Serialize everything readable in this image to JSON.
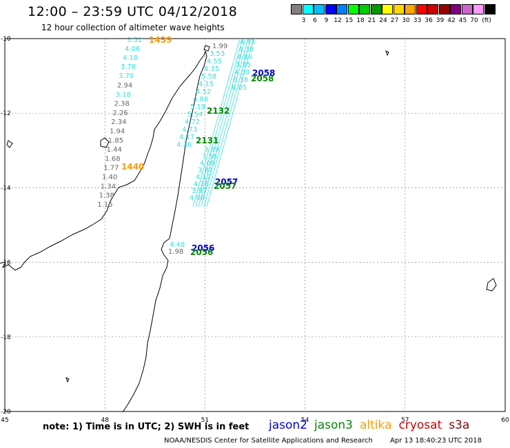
{
  "header": {
    "title": "12:00 – 23:59 UTC 04/12/2018",
    "subtitle": "12 hour collection of altimeter wave heights"
  },
  "colorbar": {
    "unit": "(ft)",
    "colors": [
      "#808080",
      "#00ffff",
      "#00bfff",
      "#0000ff",
      "#007fff",
      "#00ff00",
      "#00cc00",
      "#009900",
      "#ffff00",
      "#ffd700",
      "#ffa500",
      "#ff0000",
      "#cc0000",
      "#990000",
      "#800080",
      "#cc66cc",
      "#ff99ff",
      "#000000"
    ],
    "labels": [
      "3",
      "6",
      "9",
      "12",
      "15",
      "18",
      "21",
      "24",
      "27",
      "30",
      "33",
      "36",
      "39",
      "42",
      "45",
      "70"
    ]
  },
  "axes": {
    "lon_ticks": [
      {
        "label": "45",
        "value": 45
      },
      {
        "label": "48",
        "value": 48
      },
      {
        "label": "51",
        "value": 51
      },
      {
        "label": "54",
        "value": 54
      },
      {
        "label": "57",
        "value": 57
      },
      {
        "label": "60",
        "value": 60
      }
    ],
    "lat_ticks": [
      {
        "label": "-10",
        "value": -10
      },
      {
        "label": "-12",
        "value": -12
      },
      {
        "label": "-14",
        "value": -14
      },
      {
        "label": "-16",
        "value": -16
      },
      {
        "label": "-18",
        "value": -18
      },
      {
        "label": "-20",
        "value": -20
      }
    ]
  },
  "observations": {
    "cyan_color": "#33dddd",
    "gray_color": "#666666",
    "track1_cyan": [
      "3.51",
      "4.06",
      "4.18",
      "3.78",
      "3.70"
    ],
    "track1_mixed": [
      {
        "v": "2.94",
        "c": "gray"
      },
      {
        "v": "3.18",
        "c": "cyan"
      },
      {
        "v": "2.38",
        "c": "gray"
      },
      {
        "v": "2.26",
        "c": "gray"
      },
      {
        "v": "2.34",
        "c": "gray"
      },
      {
        "v": "1.94",
        "c": "gray"
      },
      {
        "v": "1.85",
        "c": "gray"
      },
      {
        "v": "1.44",
        "c": "gray"
      },
      {
        "v": "1.68",
        "c": "gray"
      },
      {
        "v": "1.77",
        "c": "gray"
      },
      {
        "v": "1.40",
        "c": "gray"
      },
      {
        "v": "1.34",
        "c": "gray"
      },
      {
        "v": "1.38",
        "c": "gray"
      },
      {
        "v": "1.15",
        "c": "gray"
      }
    ],
    "track2": [
      {
        "v": "1.99",
        "c": "gray"
      },
      {
        "v": "3.53",
        "c": "cyan"
      },
      {
        "v": "4.55",
        "c": "cyan"
      },
      {
        "v": "4.35",
        "c": "cyan"
      },
      {
        "v": "5.58",
        "c": "cyan"
      },
      {
        "v": "4.15",
        "c": "cyan"
      },
      {
        "v": "4.52",
        "c": "cyan"
      },
      {
        "v": "4.86",
        "c": "cyan"
      },
      {
        "v": "5.19",
        "c": "cyan"
      },
      {
        "v": "5.54",
        "c": "cyan"
      },
      {
        "v": "4.72",
        "c": "cyan"
      },
      {
        "v": "4.73",
        "c": "cyan"
      },
      {
        "v": "4.17",
        "c": "cyan"
      },
      {
        "v": "4.36",
        "c": "cyan"
      }
    ],
    "track3_right": [
      "4.43",
      "4.38",
      "4.89",
      "3.85",
      "4.30",
      "6.18",
      "6.05"
    ],
    "track4_bottom": [
      "3.89",
      "3.56",
      "4.09",
      "3.81",
      "4.12",
      "4.26",
      "3.97",
      "4.06"
    ],
    "south_cyan": "4.48",
    "south_gray": "1.98"
  },
  "pass_labels": [
    {
      "text": "1439",
      "color": "#ff9900"
    },
    {
      "text": "1440",
      "color": "#ff9900"
    },
    {
      "text": "2058",
      "color": "#0000cc"
    },
    {
      "text": "2058",
      "color": "#008800"
    },
    {
      "text": "2132",
      "color": "#008800"
    },
    {
      "text": "2131",
      "color": "#008800"
    },
    {
      "text": "2057",
      "color": "#0000cc"
    },
    {
      "text": "2057",
      "color": "#008800"
    },
    {
      "text": "2056",
      "color": "#0000cc"
    },
    {
      "text": "2056",
      "color": "#008800"
    }
  ],
  "footer": {
    "note": "note: 1) Time is in UTC; 2) SWH is in feet",
    "legend": [
      {
        "name": "jason2",
        "color": "#0000cc"
      },
      {
        "name": "jason3",
        "color": "#008800"
      },
      {
        "name": "altika",
        "color": "#ff9900"
      },
      {
        "name": "cryosat",
        "color": "#cc0000"
      },
      {
        "name": "s3a",
        "color": "#880000"
      }
    ],
    "credit": "NOAA/NESDIS Center for Satellite Applications and Research",
    "timestamp": "Apr 13 18:40:23 UTC 2018"
  }
}
